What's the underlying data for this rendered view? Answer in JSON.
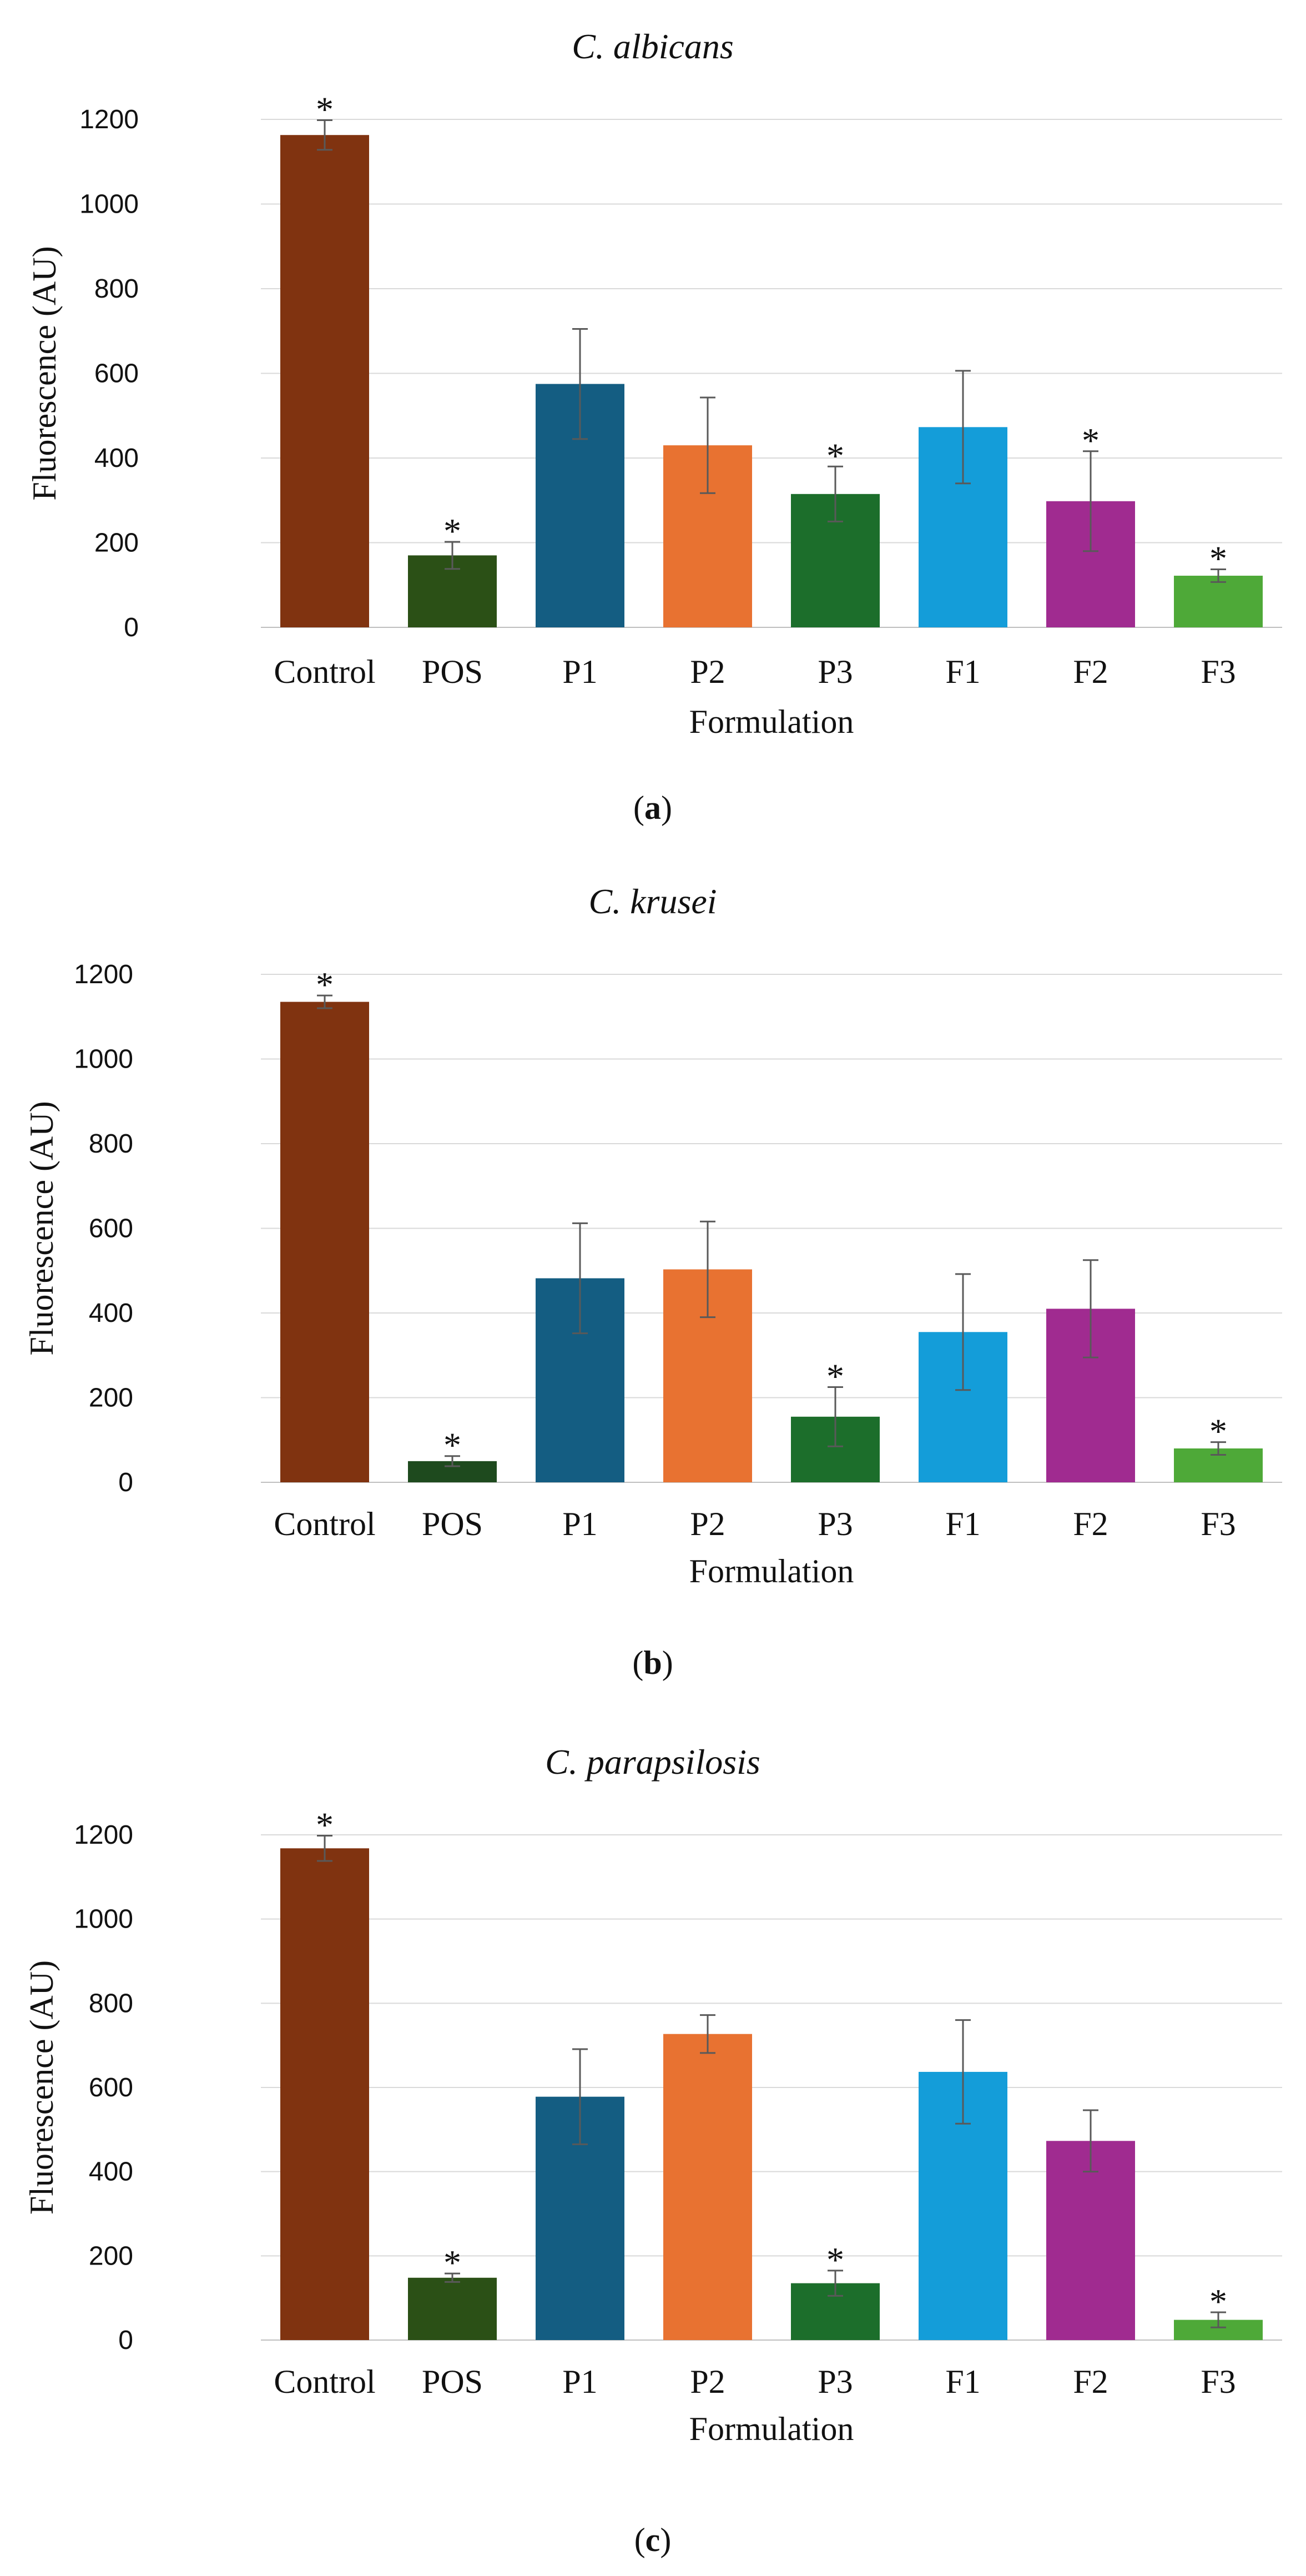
{
  "chart_data": [
    {
      "type": "bar",
      "title": "C. albicans",
      "panel_label": "a",
      "xlabel": "Formulation",
      "ylabel": "Fluorescence (AU)",
      "ylim": [
        0,
        1200
      ],
      "yticks": [
        "0",
        "200",
        "400",
        "600",
        "800",
        "1000",
        "1200"
      ],
      "grid": true,
      "categories": [
        "Control",
        "POS",
        "P1",
        "P2",
        "P3",
        "F1",
        "F2",
        "F3"
      ],
      "values": [
        1163,
        170,
        575,
        430,
        315,
        473,
        298,
        122
      ],
      "errors": [
        35,
        32,
        130,
        113,
        65,
        133,
        118,
        15
      ],
      "significant": [
        true,
        true,
        false,
        false,
        true,
        false,
        true,
        true
      ],
      "significance_marker": "*",
      "colors": [
        "#803310",
        "#2b5016",
        "#145d82",
        "#e87231",
        "#1c6e2b",
        "#149dd9",
        "#a02b90",
        "#4ea938"
      ]
    },
    {
      "type": "bar",
      "title": "C. krusei",
      "panel_label": "b",
      "xlabel": "Formulation",
      "ylabel": "Fluorescence (AU)",
      "ylim": [
        0,
        1200
      ],
      "yticks": [
        "0",
        "200",
        "400",
        "600",
        "800",
        "1000",
        "1200"
      ],
      "grid": true,
      "categories": [
        "Control",
        "POS",
        "P1",
        "P2",
        "P3",
        "F1",
        "F2",
        "F3"
      ],
      "values": [
        1135,
        50,
        482,
        503,
        155,
        355,
        410,
        80
      ],
      "errors": [
        15,
        12,
        130,
        113,
        70,
        137,
        115,
        15
      ],
      "significant": [
        true,
        true,
        false,
        false,
        true,
        false,
        false,
        true
      ],
      "significance_marker": "*",
      "colors": [
        "#803310",
        "#1e4a1e",
        "#145d82",
        "#e87231",
        "#1c6e2b",
        "#149dd9",
        "#a02b90",
        "#4ea938"
      ]
    },
    {
      "type": "bar",
      "title": "C. parapsilosis",
      "panel_label": "c",
      "xlabel": "Formulation",
      "ylabel": "Fluorescence (AU)",
      "ylim": [
        0,
        1200
      ],
      "yticks": [
        "0",
        "200",
        "400",
        "600",
        "800",
        "1000",
        "1200"
      ],
      "grid": true,
      "categories": [
        "Control",
        "POS",
        "P1",
        "P2",
        "P3",
        "F1",
        "F2",
        "F3"
      ],
      "values": [
        1168,
        148,
        578,
        727,
        135,
        637,
        473,
        48
      ],
      "errors": [
        30,
        10,
        113,
        45,
        30,
        123,
        73,
        18
      ],
      "significant": [
        true,
        true,
        false,
        false,
        true,
        false,
        false,
        true
      ],
      "significance_marker": "*",
      "colors": [
        "#803310",
        "#2b5016",
        "#145d82",
        "#e87231",
        "#1c6e2b",
        "#149dd9",
        "#a02b90",
        "#4ea938"
      ]
    }
  ]
}
